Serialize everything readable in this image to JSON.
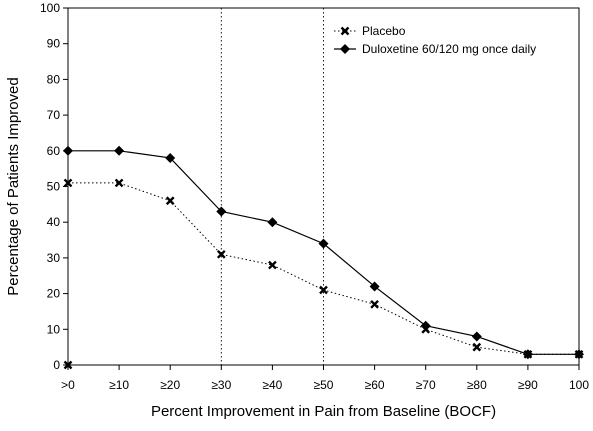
{
  "chart_data": {
    "type": "line",
    "title": "",
    "xlabel": "Percent Improvement in Pain from Baseline (BOCF)",
    "ylabel": "Percentage of Patients Improved",
    "categories": [
      ">0",
      "≥10",
      "≥20",
      "≥30",
      "≥40",
      "≥50",
      "≥60",
      "≥70",
      "≥80",
      "≥90",
      "100"
    ],
    "ylim": [
      0,
      100
    ],
    "yticks": [
      "0",
      "10",
      "20",
      "30",
      "40",
      "50",
      "60",
      "70",
      "80",
      "90",
      "100"
    ],
    "reference_lines_at": [
      "≥30",
      "≥50"
    ],
    "grid": false,
    "legend_position": "top-right",
    "series": [
      {
        "name": "Placebo",
        "values": [
          51,
          51,
          46,
          31,
          28,
          21,
          17,
          10,
          5,
          3,
          3
        ],
        "extra_point": {
          "category": ">0",
          "value": 0
        },
        "line_style": "dotted",
        "marker": "x",
        "color": "#000000"
      },
      {
        "name": "Duloxetine 60/120 mg once daily",
        "values": [
          60,
          60,
          58,
          43,
          40,
          34,
          22,
          11,
          8,
          3,
          3
        ],
        "line_style": "solid",
        "marker": "diamond",
        "color": "#000000"
      }
    ]
  }
}
